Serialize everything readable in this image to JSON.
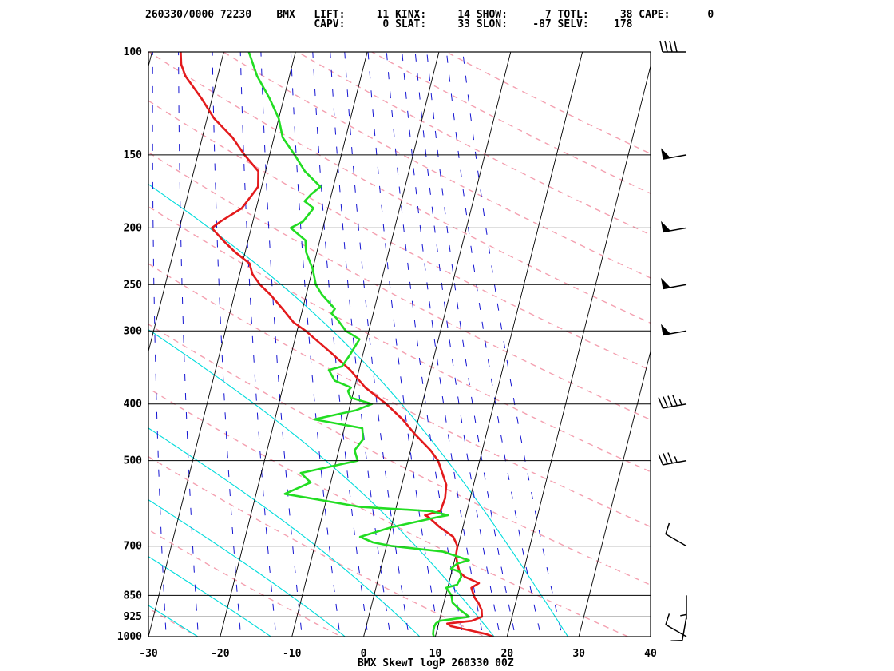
{
  "header": {
    "line1": "260330/0000 72230    BMX   LIFT:     11 KINX:     14 SHOW:      7 TOTL:     38 CAPE:      0",
    "line2": "                           CAPV:      0 SLAT:     33 SLON:    -87 SELV:    178"
  },
  "chart_data": {
    "type": "line",
    "title": "BMX SkewT logP 260330 00Z",
    "xlabel": "",
    "ylabel": "",
    "x_axis": {
      "range": [
        -30,
        40
      ],
      "ticks": [
        -30,
        -20,
        -10,
        0,
        10,
        20,
        30,
        40
      ],
      "unit": "C"
    },
    "y_axis": {
      "scale": "log",
      "range": [
        1000,
        100
      ],
      "ticks": [
        1000,
        925,
        850,
        700,
        500,
        400,
        300,
        250,
        200,
        150,
        100
      ],
      "unit": "hPa"
    },
    "series": [
      {
        "color": "#e31a1c",
        "points": [
          [
            1000,
            18.0
          ],
          [
            990,
            17.0
          ],
          [
            975,
            14.5
          ],
          [
            960,
            11.8
          ],
          [
            950,
            11.2
          ],
          [
            940,
            14.5
          ],
          [
            925,
            15.8
          ],
          [
            900,
            15.5
          ],
          [
            875,
            14.8
          ],
          [
            860,
            14.2
          ],
          [
            850,
            13.9
          ],
          [
            825,
            13.3
          ],
          [
            810,
            14.2
          ],
          [
            790,
            12.0
          ],
          [
            775,
            11.1
          ],
          [
            750,
            10.5
          ],
          [
            725,
            10.0
          ],
          [
            700,
            9.9
          ],
          [
            675,
            9.0
          ],
          [
            650,
            6.8
          ],
          [
            625,
            4.9
          ],
          [
            620,
            4.3
          ],
          [
            610,
            6.3
          ],
          [
            580,
            6.5
          ],
          [
            550,
            6.2
          ],
          [
            500,
            4.2
          ],
          [
            480,
            2.8
          ],
          [
            450,
            0.0
          ],
          [
            425,
            -2.2
          ],
          [
            400,
            -5.0
          ],
          [
            375,
            -8.5
          ],
          [
            350,
            -11.2
          ],
          [
            325,
            -14.8
          ],
          [
            300,
            -18.8
          ],
          [
            290,
            -20.8
          ],
          [
            275,
            -22.8
          ],
          [
            260,
            -25.0
          ],
          [
            250,
            -26.8
          ],
          [
            240,
            -28.2
          ],
          [
            230,
            -29.0
          ],
          [
            220,
            -31.4
          ],
          [
            210,
            -33.5
          ],
          [
            200,
            -35.5
          ],
          [
            195,
            -34.5
          ],
          [
            185,
            -32.0
          ],
          [
            175,
            -31.0
          ],
          [
            170,
            -30.5
          ],
          [
            160,
            -31.0
          ],
          [
            150,
            -33.5
          ],
          [
            140,
            -35.8
          ],
          [
            130,
            -39.0
          ],
          [
            120,
            -41.5
          ],
          [
            110,
            -44.5
          ],
          [
            105,
            -45.5
          ],
          [
            100,
            -46.0
          ]
        ]
      },
      {
        "color": "#22dd22",
        "points": [
          [
            1000,
            9.8
          ],
          [
            990,
            9.6
          ],
          [
            975,
            9.5
          ],
          [
            960,
            9.5
          ],
          [
            950,
            9.6
          ],
          [
            940,
            10.0
          ],
          [
            925,
            14.0
          ],
          [
            900,
            12.5
          ],
          [
            875,
            11.2
          ],
          [
            850,
            10.8
          ],
          [
            825,
            9.8
          ],
          [
            815,
            11.2
          ],
          [
            790,
            11.5
          ],
          [
            775,
            11.2
          ],
          [
            765,
            9.8
          ],
          [
            750,
            10.5
          ],
          [
            740,
            12.0
          ],
          [
            715,
            8.0
          ],
          [
            700,
            0.8
          ],
          [
            690,
            -2.0
          ],
          [
            675,
            -4.0
          ],
          [
            650,
            0.0
          ],
          [
            625,
            6.0
          ],
          [
            620,
            7.5
          ],
          [
            610,
            5.0
          ],
          [
            600,
            -5.0
          ],
          [
            570,
            -16.0
          ],
          [
            545,
            -12.8
          ],
          [
            525,
            -14.5
          ],
          [
            500,
            -7.0
          ],
          [
            480,
            -7.8
          ],
          [
            460,
            -7.0
          ],
          [
            440,
            -7.5
          ],
          [
            425,
            -14.5
          ],
          [
            410,
            -9.0
          ],
          [
            400,
            -7.0
          ],
          [
            390,
            -10.2
          ],
          [
            380,
            -10.8
          ],
          [
            375,
            -10.5
          ],
          [
            365,
            -13.0
          ],
          [
            350,
            -14.2
          ],
          [
            345,
            -12.5
          ],
          [
            330,
            -11.8
          ],
          [
            310,
            -11.0
          ],
          [
            300,
            -13.2
          ],
          [
            285,
            -15.0
          ],
          [
            280,
            -15.8
          ],
          [
            275,
            -15.5
          ],
          [
            260,
            -17.8
          ],
          [
            250,
            -19.0
          ],
          [
            235,
            -20.0
          ],
          [
            220,
            -21.5
          ],
          [
            210,
            -22.0
          ],
          [
            200,
            -24.5
          ],
          [
            195,
            -23.0
          ],
          [
            185,
            -22.0
          ],
          [
            180,
            -23.5
          ],
          [
            175,
            -22.8
          ],
          [
            170,
            -21.8
          ],
          [
            160,
            -24.5
          ],
          [
            150,
            -26.5
          ],
          [
            140,
            -28.8
          ],
          [
            130,
            -30.0
          ],
          [
            120,
            -32.0
          ],
          [
            110,
            -34.5
          ],
          [
            100,
            -36.5
          ]
        ]
      }
    ],
    "colors": {
      "isotherm": "#000000",
      "isobar": "#000000",
      "dry_adiabat": "#f4a0b0",
      "moist_adiabat": "#00dcdc",
      "mixing_ratio": "#1414d2",
      "temperature": "#e31a1c",
      "dewpoint": "#22dd22",
      "wind_barb": "#000000"
    }
  },
  "wind_profile": [
    {
      "p": 1000,
      "dir": 300,
      "spd": 10
    },
    {
      "p": 925,
      "dir": 190,
      "spd": 10
    },
    {
      "p": 850,
      "dir": 180,
      "spd": 5
    },
    {
      "p": 700,
      "dir": 300,
      "spd": 10
    },
    {
      "p": 500,
      "dir": 260,
      "spd": 35
    },
    {
      "p": 400,
      "dir": 260,
      "spd": 45
    },
    {
      "p": 300,
      "dir": 260,
      "spd": 50
    },
    {
      "p": 250,
      "dir": 260,
      "spd": 50
    },
    {
      "p": 200,
      "dir": 260,
      "spd": 50
    },
    {
      "p": 150,
      "dir": 260,
      "spd": 50
    },
    {
      "p": 100,
      "dir": 270,
      "spd": 40
    }
  ]
}
